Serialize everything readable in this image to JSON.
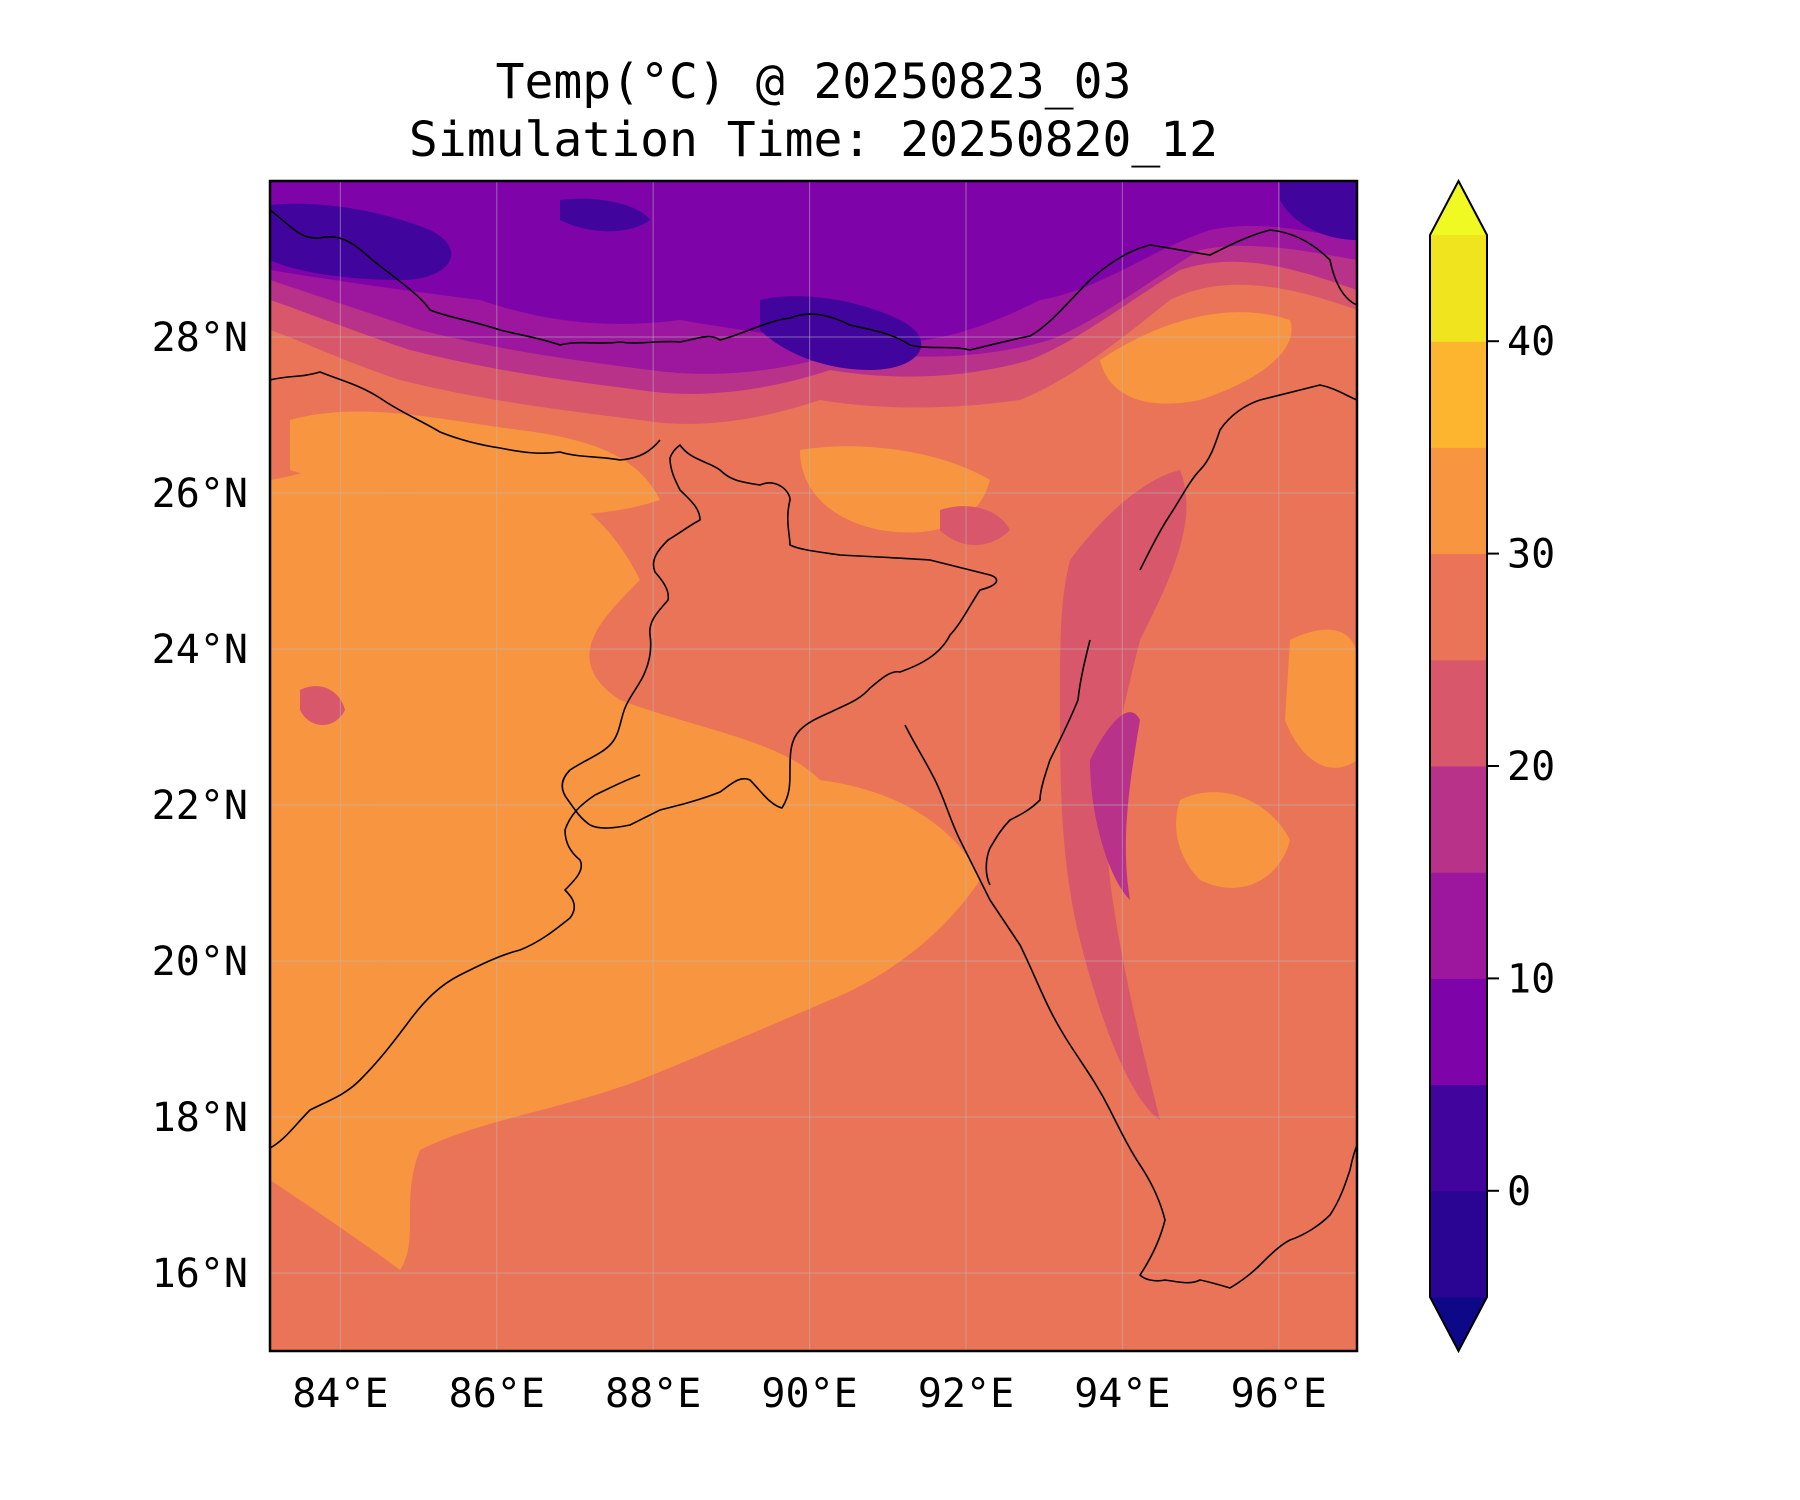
{
  "title": {
    "line1": "Temp(°C) @ 20250823_03",
    "line2": "Simulation Time: 20250820_12"
  },
  "map": {
    "extent": {
      "lon_min": 83.1,
      "lon_max": 97.0,
      "lat_min": 15.0,
      "lat_max": 30.0
    },
    "lat_ticks": [
      {
        "value": 28,
        "label": "28°N"
      },
      {
        "value": 26,
        "label": "26°N"
      },
      {
        "value": 24,
        "label": "24°N"
      },
      {
        "value": 22,
        "label": "22°N"
      },
      {
        "value": 20,
        "label": "20°N"
      },
      {
        "value": 18,
        "label": "18°N"
      },
      {
        "value": 16,
        "label": "16°N"
      }
    ],
    "lon_ticks": [
      {
        "value": 84,
        "label": "84°E"
      },
      {
        "value": 86,
        "label": "86°E"
      },
      {
        "value": 88,
        "label": "88°E"
      },
      {
        "value": 90,
        "label": "90°E"
      },
      {
        "value": 92,
        "label": "92°E"
      },
      {
        "value": 94,
        "label": "94°E"
      },
      {
        "value": 96,
        "label": "96°E"
      }
    ],
    "gridlines": true,
    "dominant_field_color": "#ea7457"
  },
  "colorbar": {
    "min": -5,
    "max": 45,
    "step": 5,
    "extend": "both",
    "under_color": "#0d0887",
    "over_color": "#f0f921",
    "levels": [
      {
        "from": -5,
        "to": 0,
        "color": "#2a0593"
      },
      {
        "from": 0,
        "to": 5,
        "color": "#41049d"
      },
      {
        "from": 5,
        "to": 10,
        "color": "#7e03a8"
      },
      {
        "from": 10,
        "to": 15,
        "color": "#9c179e"
      },
      {
        "from": 15,
        "to": 20,
        "color": "#b93289"
      },
      {
        "from": 20,
        "to": 25,
        "color": "#d8576b"
      },
      {
        "from": 25,
        "to": 30,
        "color": "#ea7457"
      },
      {
        "from": 30,
        "to": 35,
        "color": "#f89540"
      },
      {
        "from": 35,
        "to": 40,
        "color": "#fdb42f"
      },
      {
        "from": 40,
        "to": 45,
        "color": "#f0e41f"
      }
    ],
    "ticks": [
      {
        "value": 0,
        "label": "0"
      },
      {
        "value": 10,
        "label": "10"
      },
      {
        "value": 20,
        "label": "20"
      },
      {
        "value": 30,
        "label": "30"
      },
      {
        "value": 40,
        "label": "40"
      }
    ]
  }
}
